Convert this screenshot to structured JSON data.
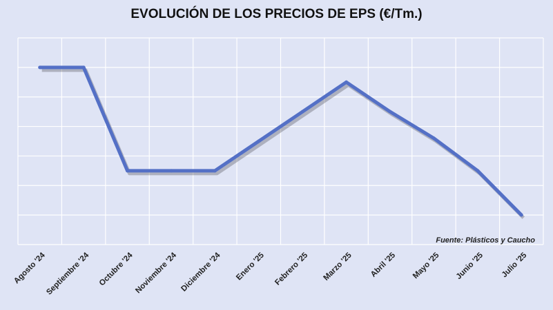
{
  "chart_data": {
    "type": "line",
    "title": "EVOLUCIÓN DE LOS PRECIOS DE EPS (€/Tm.)",
    "xlabel": "",
    "ylabel": "",
    "categories": [
      "Agosto '24",
      "Septiembre '24",
      "Octubre '24",
      "Noviembre '24",
      "Diciembre '24",
      "Enero '25",
      "Febrero '25",
      "Marzo '25",
      "Abril '25",
      "Mayo '25",
      "Junio '25",
      "Julio '25"
    ],
    "series": [
      {
        "values": [
          6,
          6,
          2.5,
          2.5,
          2.5,
          3.5,
          4.5,
          5.5,
          4.5,
          3.6,
          2.5,
          1
        ]
      }
    ],
    "ylim": [
      0,
      7
    ],
    "grid": true,
    "line_color": "#5470c6",
    "background": "#dfe4f5",
    "grid_color": "#ffffff",
    "source_note": "Fuente: Plásticos y Caucho"
  }
}
